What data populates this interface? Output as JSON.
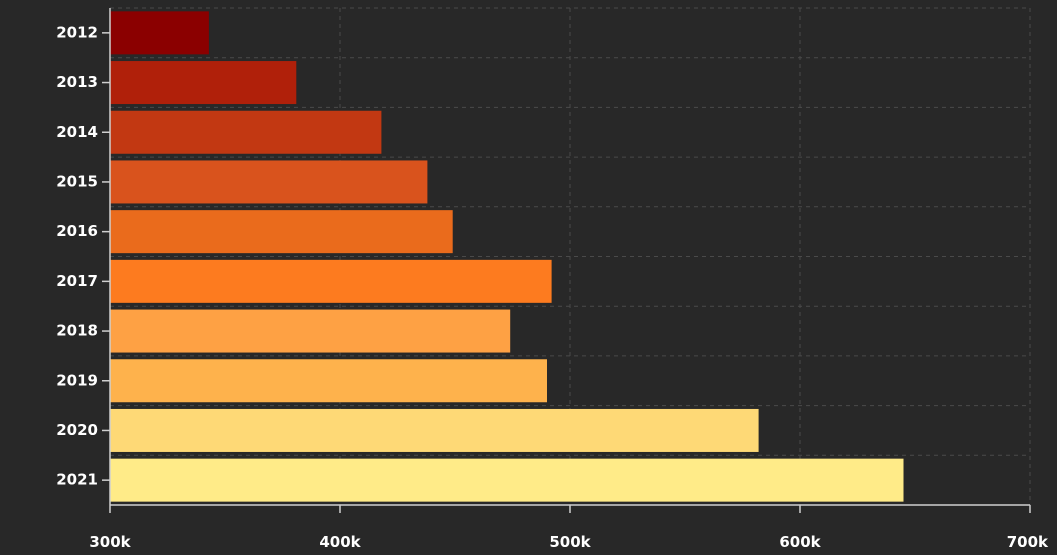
{
  "chart_data": {
    "type": "bar",
    "orientation": "horizontal",
    "title": "",
    "xlabel": "",
    "ylabel": "",
    "categories": [
      "2012",
      "2013",
      "2014",
      "2015",
      "2016",
      "2017",
      "2018",
      "2019",
      "2020",
      "2021"
    ],
    "values": [
      343000,
      381000,
      418000,
      438000,
      449000,
      492000,
      474000,
      490000,
      582000,
      645000
    ],
    "colors": [
      "#8b0000",
      "#b0200a",
      "#c23812",
      "#d9531d",
      "#ea6b1c",
      "#fd7b1f",
      "#fea144",
      "#feb24c",
      "#fed976",
      "#ffeb88"
    ],
    "xlim": [
      300000,
      700000
    ],
    "x_ticks": [
      300000,
      400000,
      500000,
      600000,
      700000
    ],
    "x_tick_labels": [
      "300k",
      "400k",
      "500k",
      "600k",
      "700k"
    ],
    "grid": true,
    "legend": "none",
    "background": "#282828"
  }
}
